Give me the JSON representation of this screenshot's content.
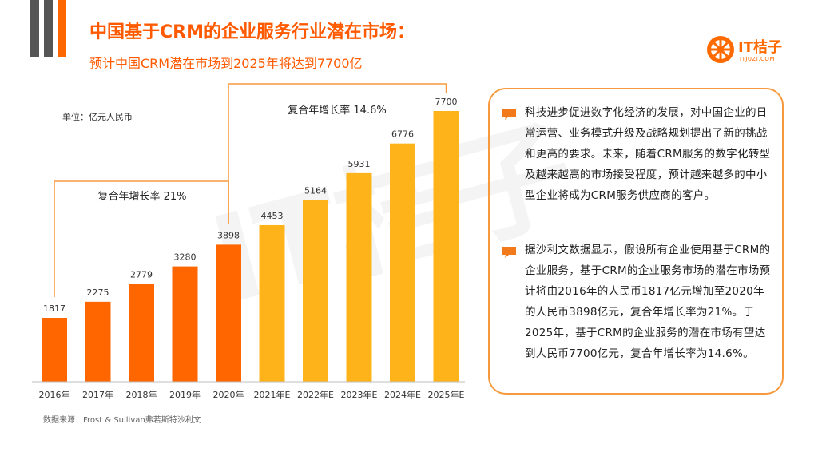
{
  "header": {
    "title": "中国基于CRM的企业服务行业潜在市场：",
    "subtitle": "预计中国CRM潜在市场到2025年将达到7700亿"
  },
  "logo": {
    "text": "IT桔子",
    "sub": "ITJUZI.COM"
  },
  "watermark": "IT桔子",
  "unit_label": "单位：亿元人民币",
  "colors": {
    "orange_dark": "#ff6600",
    "orange_light": "#ffb31a",
    "accent": "#ff5a00",
    "panel_border": "#f79a3e"
  },
  "chart_data": {
    "type": "bar",
    "title": "",
    "xlabel": "",
    "ylabel": "亿元人民币",
    "categories": [
      "2016年",
      "2017年",
      "2018年",
      "2019年",
      "2020年",
      "2021年E",
      "2022年E",
      "2023年E",
      "2024年E",
      "2025年E"
    ],
    "values": [
      1817,
      2275,
      2779,
      3280,
      3898,
      4453,
      5164,
      5931,
      6776,
      7700
    ],
    "ylim": [
      0,
      7700
    ],
    "series_styles": [
      "actual",
      "actual",
      "actual",
      "actual",
      "actual",
      "forecast",
      "forecast",
      "forecast",
      "forecast",
      "forecast"
    ],
    "annotations": [
      {
        "text": "复合年增长率 21%",
        "from": "2016年",
        "to": "2020年"
      },
      {
        "text": "复合年增长率 14.6%",
        "from": "2020年",
        "to": "2025年E"
      }
    ]
  },
  "panel": {
    "paragraph1": "科技进步促进数字化经济的发展，对中国企业的日常运营、业务模式升级及战略规划提出了新的挑战和更高的要求。未来，随着CRM服务的数字化转型及越来越高的市场接受程度，预计越来越多的中小型企业将成为CRM服务供应商的客户。",
    "paragraph2": "据沙利文数据显示，假设所有企业使用基于CRM的企业服务，基于CRM的企业服务市场的潜在市场预计将由2016年的人民币1817亿元增加至2020年的人民币3898亿元，复合年增长率为21%。于2025年，基于CRM的企业服务的潜在市场有望达到人民币7700亿元，复合年增长率为14.6%。"
  },
  "source": "数据来源：Frost & Sullivan弗若斯特沙利文"
}
